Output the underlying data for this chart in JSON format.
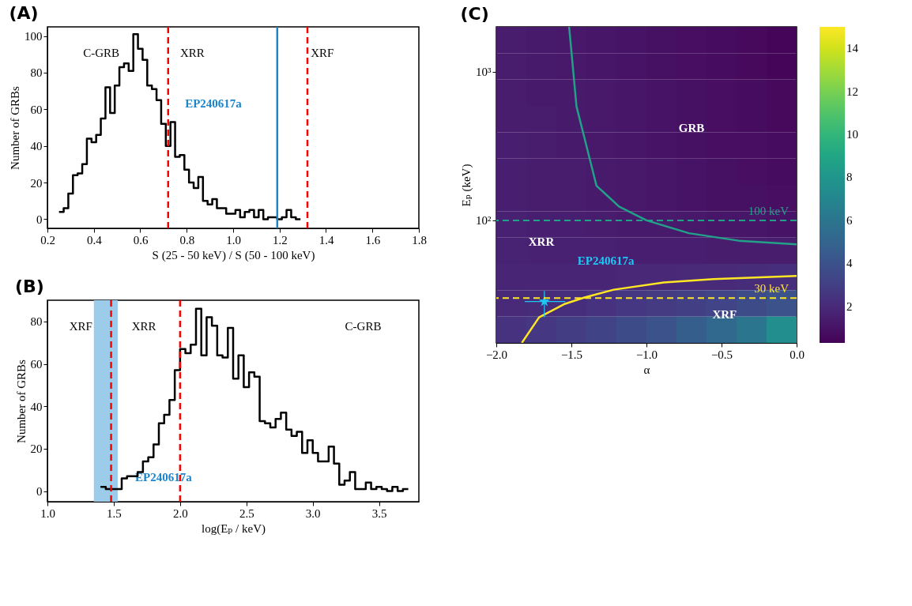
{
  "chart_data": [
    {
      "type": "histogram",
      "title": "(A)",
      "xlabel": "S (25 - 50 keV) / S (50 - 100 keV)",
      "ylabel": "Number of GRBs",
      "color": "#000000",
      "bins": [
        0.25,
        0.27,
        0.29,
        0.31,
        0.33,
        0.35,
        0.37,
        0.39,
        0.41,
        0.43,
        0.45,
        0.47,
        0.49,
        0.51,
        0.53,
        0.55,
        0.57,
        0.59,
        0.61,
        0.63,
        0.65,
        0.67,
        0.69,
        0.71,
        0.73,
        0.75,
        0.77,
        0.79,
        0.81,
        0.83,
        0.85,
        0.87,
        0.89,
        0.91,
        0.93,
        0.95,
        0.97,
        0.99,
        1.01,
        1.03,
        1.05,
        1.07,
        1.09,
        1.11,
        1.13,
        1.15,
        1.17,
        1.19,
        1.21,
        1.23,
        1.25,
        1.27,
        1.29
      ],
      "values": [
        4,
        6,
        14,
        24,
        25,
        30,
        44,
        42,
        46,
        55,
        72,
        58,
        73,
        83,
        85,
        81,
        101,
        93,
        87,
        73,
        71,
        65,
        52,
        40,
        53,
        34,
        35,
        27,
        20,
        17,
        23,
        10,
        8,
        11,
        6,
        6,
        3,
        3,
        5,
        1,
        4,
        5,
        1,
        5,
        0,
        1,
        1,
        0,
        1,
        5,
        1,
        0
      ],
      "xlim": [
        0.2,
        1.8
      ],
      "xticks": [
        0.2,
        0.4,
        0.6,
        0.8,
        {
          "value": 1.0,
          "label": "1.0"
        },
        1.2,
        1.4,
        1.6,
        1.8
      ],
      "ylim": [
        -5,
        105
      ],
      "yticks": [
        0,
        20,
        40,
        60,
        80,
        100
      ],
      "ref_lines": [
        {
          "axis": "x",
          "value": 0.72,
          "color": "#ff0000",
          "line_style": "dashed"
        },
        {
          "axis": "x",
          "value": 1.32,
          "color": "#ff0000",
          "line_style": "dashed"
        },
        {
          "axis": "x",
          "value": 1.19,
          "color": "#1a85cc",
          "line_style": "solid",
          "label": "EP240617a"
        }
      ],
      "annotations": [
        "C-GRB",
        "XRR",
        "XRF"
      ]
    },
    {
      "type": "histogram",
      "title": "(B)",
      "xlabel": "log(Eₚ / keV)",
      "ylabel": "Number of GRBs",
      "color": "#000000",
      "bins": [
        1.4,
        1.44,
        1.48,
        1.52,
        1.56,
        1.6,
        1.64,
        1.68,
        1.72,
        1.76,
        1.8,
        1.84,
        1.88,
        1.92,
        1.96,
        2.0,
        2.04,
        2.08,
        2.12,
        2.16,
        2.2,
        2.24,
        2.28,
        2.32,
        2.36,
        2.4,
        2.44,
        2.48,
        2.52,
        2.56,
        2.6,
        2.64,
        2.68,
        2.72,
        2.76,
        2.8,
        2.84,
        2.88,
        2.92,
        2.96,
        3.0,
        3.04,
        3.08,
        3.12,
        3.16,
        3.2,
        3.24,
        3.28,
        3.32,
        3.36,
        3.4,
        3.44,
        3.48,
        3.52,
        3.56,
        3.6,
        3.64,
        3.68,
        3.72
      ],
      "values": [
        2,
        1,
        1,
        1,
        6,
        7,
        7,
        9,
        14,
        16,
        22,
        32,
        36,
        43,
        57,
        67,
        65,
        69,
        86,
        64,
        82,
        78,
        64,
        63,
        77,
        53,
        64,
        49,
        56,
        54,
        33,
        32,
        30,
        34,
        37,
        29,
        26,
        28,
        18,
        24,
        18,
        14,
        14,
        21,
        13,
        3,
        5,
        9,
        1,
        1,
        4,
        1,
        2,
        1,
        0,
        2,
        0,
        1
      ],
      "xlim": [
        1.0,
        3.8
      ],
      "xticks": [
        {
          "value": 1.0,
          "label": "1.0"
        },
        1.5,
        {
          "value": 2.0,
          "label": "2.0"
        },
        2.5,
        {
          "value": 3.0,
          "label": "3.0"
        },
        3.5
      ],
      "ylim": [
        -5,
        90
      ],
      "yticks": [
        0,
        20,
        40,
        60,
        80
      ],
      "bands": [
        {
          "axis": "x",
          "from": 1.35,
          "to": 1.53,
          "color": "#9dcbea",
          "label": "EP240617a"
        }
      ],
      "ref_lines": [
        {
          "axis": "x",
          "value": 1.48,
          "color": "#ff0000",
          "line_style": "dashed"
        },
        {
          "axis": "x",
          "value": 2.0,
          "color": "#ff0000",
          "line_style": "dashed"
        }
      ],
      "annotations": [
        "XRF",
        "XRR",
        "C-GRB"
      ]
    },
    {
      "type": "heatmap",
      "categories": [
        null,
        null,
        null,
        null,
        null,
        null,
        null,
        null,
        null,
        null
      ],
      "y_categories": [
        null,
        null,
        null,
        null,
        null,
        null,
        null,
        null,
        null,
        null,
        null,
        null
      ],
      "clim": [
        0.3,
        15
      ],
      "cticks": [
        2,
        4,
        6,
        8,
        10,
        12,
        14
      ],
      "cells": [
        [
          1.4,
          1.3,
          1.2,
          1.1,
          1.0,
          0.9,
          0.8,
          0.7,
          0.6,
          0.5
        ],
        [
          1.4,
          1.3,
          1.2,
          1.1,
          1.0,
          0.9,
          0.8,
          0.7,
          0.6,
          0.5
        ],
        [
          1.4,
          1.3,
          1.3,
          1.2,
          1.1,
          1.0,
          0.9,
          0.8,
          0.7,
          0.6
        ],
        [
          1.4,
          1.4,
          1.3,
          1.2,
          1.1,
          1.0,
          0.9,
          0.8,
          0.7,
          0.6
        ],
        [
          1.5,
          1.4,
          1.3,
          1.2,
          1.1,
          1.0,
          0.9,
          0.8,
          0.8,
          0.7
        ],
        [
          1.5,
          1.4,
          1.4,
          1.3,
          1.2,
          1.1,
          1.0,
          0.9,
          0.8,
          0.7
        ],
        [
          1.5,
          1.4,
          1.4,
          1.3,
          1.2,
          1.1,
          1.0,
          0.9,
          0.9,
          0.8
        ],
        [
          1.6,
          1.5,
          1.5,
          1.4,
          1.3,
          1.3,
          1.2,
          1.1,
          1.1,
          1.0
        ],
        [
          1.7,
          1.6,
          1.6,
          1.6,
          1.5,
          1.5,
          1.5,
          1.4,
          1.4,
          1.4
        ],
        [
          1.8,
          1.8,
          1.8,
          1.8,
          1.9,
          1.9,
          2.0,
          2.0,
          2.1,
          2.2
        ],
        [
          2.0,
          2.1,
          2.2,
          2.4,
          2.6,
          2.8,
          3.0,
          3.3,
          3.6,
          4.0
        ],
        [
          2.4,
          2.6,
          2.9,
          3.2,
          3.6,
          4.0,
          4.6,
          5.2,
          6.0,
          7.5
        ]
      ]
    },
    {
      "type": "line",
      "title": "(C)",
      "xlabel": "α",
      "ylabel": "Eₚ (keV)",
      "log": "y",
      "xlim": [
        -2.0,
        0.0
      ],
      "xticks": [
        {
          "value": -2.0,
          "label": "−2.0"
        },
        {
          "value": -1.5,
          "label": "−1.5"
        },
        {
          "value": -1.0,
          "label": "−1.0"
        },
        {
          "value": -0.5,
          "label": "−0.5"
        },
        {
          "value": 0.0,
          "label": "0.0"
        }
      ],
      "ylim": [
        15,
        2000
      ],
      "yticks": [
        {
          "value": 100,
          "label": "10²"
        },
        {
          "value": 1000,
          "label": "10³"
        }
      ],
      "series": [
        {
          "type": "line",
          "color": "#22a189",
          "x": [
            -1.515,
            -1.466,
            -1.333,
            -1.183,
            -1.0,
            -0.718,
            -0.386,
            0.0
          ],
          "values": [
            2000,
            584,
            171,
            124,
            100,
            82,
            73,
            69
          ]
        },
        {
          "type": "line",
          "color": "#fde725",
          "x": [
            -1.83,
            -1.715,
            -1.549,
            -1.417,
            -1.217,
            -0.884,
            -0.553,
            0.0
          ],
          "values": [
            15,
            22.3,
            27.3,
            30.2,
            34.2,
            38.2,
            40.3,
            42.3
          ]
        },
        {
          "type": "scatter",
          "name": "EP240617a",
          "color": "#1ec8f5",
          "marker": "star",
          "x": [
            -1.68
          ],
          "values": [
            28.5
          ],
          "errors": [
            [
              22.3,
              33.5
            ]
          ],
          "xerrors": [
            [
              -1.81,
              -1.54
            ]
          ]
        }
      ],
      "ref_lines": [
        {
          "axis": "y",
          "value": 100,
          "label": "100 keV",
          "color": "#22a189",
          "line_style": "dashed"
        },
        {
          "axis": "y",
          "value": 30,
          "label": "30 keV",
          "color": "#fde725",
          "line_style": "dashed"
        }
      ],
      "annotations": [
        "GRB",
        "XRR",
        "XRF"
      ]
    }
  ]
}
